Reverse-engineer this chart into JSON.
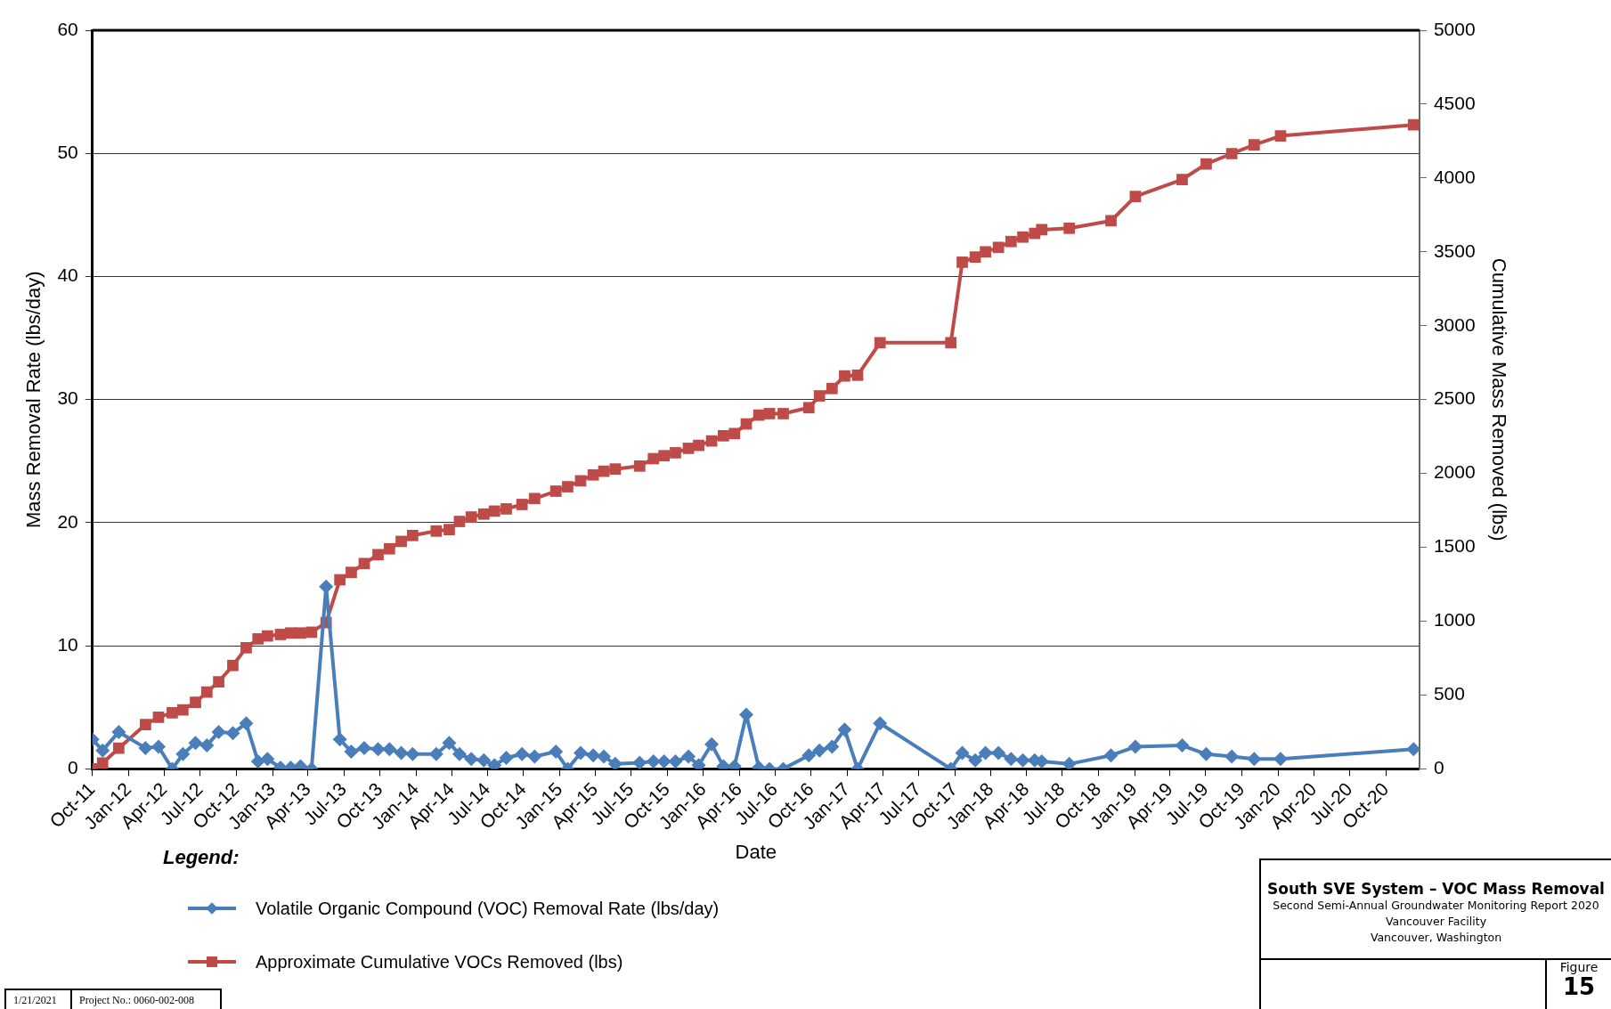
{
  "chart_data": {
    "type": "line",
    "title": "South SVE System – VOC Mass Removal",
    "subtitle": "Second Semi-Annual Groundwater Monitoring Report 2020",
    "xlabel": "Date",
    "ylabel": "Mass Removal Rate (lbs/day)",
    "y2label": "Cumulative Mass Removed (lbs)",
    "legend_title": "Legend:",
    "legend": "bottom left",
    "grid": "y",
    "line_style": "solid",
    "annotations": [
      "Vancouver Facility",
      "Vancouver, Washington",
      "Figure",
      "15",
      "1/21/2021",
      "Project No.: 0060-002-008"
    ],
    "x": [
      "2011-10-01",
      "2011-10-27",
      "2011-12-07",
      "2012-02-13",
      "2012-03-17",
      "2012-04-21",
      "2012-05-18",
      "2012-06-19",
      "2012-07-18",
      "2012-08-17",
      "2012-09-22",
      "2012-10-26",
      "2012-11-25",
      "2012-12-19",
      "2013-01-21",
      "2013-02-16",
      "2013-03-13",
      "2013-04-10",
      "2013-05-17",
      "2013-06-21",
      "2013-07-20",
      "2013-08-22",
      "2013-09-26",
      "2013-10-25",
      "2013-11-24",
      "2013-12-23",
      "2014-02-21",
      "2014-03-26",
      "2014-04-21",
      "2014-05-21",
      "2014-06-22",
      "2014-07-19",
      "2014-08-18",
      "2014-09-27",
      "2014-10-29",
      "2014-12-22",
      "2015-01-21",
      "2015-02-23",
      "2015-03-27",
      "2015-04-23",
      "2015-05-22",
      "2015-07-23",
      "2015-08-27",
      "2015-09-23",
      "2015-10-22",
      "2015-11-24",
      "2015-12-20",
      "2016-01-22",
      "2016-02-21",
      "2016-03-20",
      "2016-04-19",
      "2016-05-21",
      "2016-06-17",
      "2016-07-22",
      "2016-09-25",
      "2016-10-22",
      "2016-11-23",
      "2016-12-25",
      "2017-01-27",
      "2017-03-25",
      "2017-09-21",
      "2017-10-20",
      "2017-11-22",
      "2017-12-18",
      "2018-01-20",
      "2018-02-21",
      "2018-03-23",
      "2018-04-22",
      "2018-05-10",
      "2018-07-19",
      "2018-11-02",
      "2019-01-03",
      "2019-05-02",
      "2019-07-02",
      "2019-09-05",
      "2019-11-01",
      "2020-01-07",
      "2020-12-10"
    ],
    "series": [
      {
        "name": "Volatile Organic Compound (VOC) Removal Rate (lbs/day)",
        "color": "#4a7ebb",
        "marker": "diamond",
        "values": [
          2.4,
          1.5,
          3.0,
          1.7,
          1.8,
          0.0,
          1.2,
          2.1,
          1.9,
          3.0,
          2.9,
          3.7,
          0.6,
          0.8,
          0.1,
          0.1,
          0.2,
          0.0,
          14.8,
          2.4,
          1.4,
          1.7,
          1.6,
          1.6,
          1.3,
          1.2,
          1.2,
          2.1,
          1.2,
          0.8,
          0.7,
          0.3,
          0.9,
          1.2,
          1.0,
          1.4,
          0.0,
          1.3,
          1.1,
          1.0,
          0.4,
          0.5,
          0.6,
          0.6,
          0.6,
          1.0,
          0.3,
          2.0,
          0.2,
          0.2,
          4.4,
          0.1,
          0.0,
          0.0,
          1.1,
          1.5,
          1.8,
          3.2,
          0.0,
          3.7,
          0.0,
          1.3,
          0.7,
          1.3,
          1.3,
          0.8,
          0.7,
          0.7,
          0.6,
          0.4,
          1.1,
          1.8,
          1.9,
          1.2,
          1.0,
          0.8,
          0.8,
          1.6
        ]
      },
      {
        "name": "Approximate Cumulative VOCs Removed (lbs)",
        "color": "#be4b48",
        "marker": "square",
        "axis": "y2",
        "values": [
          0,
          40,
          140,
          300,
          350,
          380,
          400,
          450,
          520,
          590,
          700,
          820,
          880,
          900,
          910,
          920,
          920,
          925,
          990,
          1280,
          1330,
          1390,
          1450,
          1490,
          1540,
          1580,
          1610,
          1620,
          1675,
          1705,
          1725,
          1745,
          1760,
          1790,
          1830,
          1880,
          1910,
          1950,
          1990,
          2015,
          2030,
          2050,
          2100,
          2120,
          2140,
          2170,
          2190,
          2220,
          2255,
          2270,
          2335,
          2395,
          2405,
          2405,
          2445,
          2525,
          2575,
          2660,
          2665,
          2885,
          2885,
          3430,
          3465,
          3500,
          3530,
          3570,
          3600,
          3625,
          3650,
          3660,
          3710,
          3875,
          3990,
          4095,
          4165,
          4225,
          4285,
          4360
        ]
      }
    ],
    "xlim": [
      "2011-10-01",
      "2020-12-25"
    ],
    "xticks": [
      {
        "value": "2011-10-01",
        "label": "Oct-11"
      },
      {
        "value": "2012-01-01",
        "label": "Jan-12"
      },
      {
        "value": "2012-04-01",
        "label": "Apr-12"
      },
      {
        "value": "2012-07-01",
        "label": "Jul-12"
      },
      {
        "value": "2012-10-01",
        "label": "Oct-12"
      },
      {
        "value": "2013-01-01",
        "label": "Jan-13"
      },
      {
        "value": "2013-04-01",
        "label": "Apr-13"
      },
      {
        "value": "2013-07-01",
        "label": "Jul-13"
      },
      {
        "value": "2013-10-01",
        "label": "Oct-13"
      },
      {
        "value": "2014-01-01",
        "label": "Jan-14"
      },
      {
        "value": "2014-04-01",
        "label": "Apr-14"
      },
      {
        "value": "2014-07-01",
        "label": "Jul-14"
      },
      {
        "value": "2014-10-01",
        "label": "Oct-14"
      },
      {
        "value": "2015-01-01",
        "label": "Jan-15"
      },
      {
        "value": "2015-04-01",
        "label": "Apr-15"
      },
      {
        "value": "2015-07-01",
        "label": "Jul-15"
      },
      {
        "value": "2015-10-01",
        "label": "Oct-15"
      },
      {
        "value": "2016-01-01",
        "label": "Jan-16"
      },
      {
        "value": "2016-04-01",
        "label": "Apr-16"
      },
      {
        "value": "2016-07-01",
        "label": "Jul-16"
      },
      {
        "value": "2016-10-01",
        "label": "Oct-16"
      },
      {
        "value": "2017-01-01",
        "label": "Jan-17"
      },
      {
        "value": "2017-04-01",
        "label": "Apr-17"
      },
      {
        "value": "2017-07-01",
        "label": "Jul-17"
      },
      {
        "value": "2017-10-01",
        "label": "Oct-17"
      },
      {
        "value": "2018-01-01",
        "label": "Jan-18"
      },
      {
        "value": "2018-04-01",
        "label": "Apr-18"
      },
      {
        "value": "2018-07-01",
        "label": "Jul-18"
      },
      {
        "value": "2018-10-01",
        "label": "Oct-18"
      },
      {
        "value": "2019-01-01",
        "label": "Jan-19"
      },
      {
        "value": "2019-04-01",
        "label": "Apr-19"
      },
      {
        "value": "2019-07-01",
        "label": "Jul-19"
      },
      {
        "value": "2019-10-01",
        "label": "Oct-19"
      },
      {
        "value": "2020-01-01",
        "label": "Jan-20"
      },
      {
        "value": "2020-04-01",
        "label": "Apr-20"
      },
      {
        "value": "2020-07-01",
        "label": "Jul-20"
      },
      {
        "value": "2020-10-01",
        "label": "Oct-20"
      }
    ],
    "ylim": [
      0,
      60
    ],
    "yticks": [
      0,
      10,
      20,
      30,
      40,
      50,
      60
    ],
    "y2lim": [
      0,
      5000
    ],
    "y2ticks": [
      0,
      500,
      1000,
      1500,
      2000,
      2500,
      3000,
      3500,
      4000,
      4500,
      5000
    ]
  }
}
